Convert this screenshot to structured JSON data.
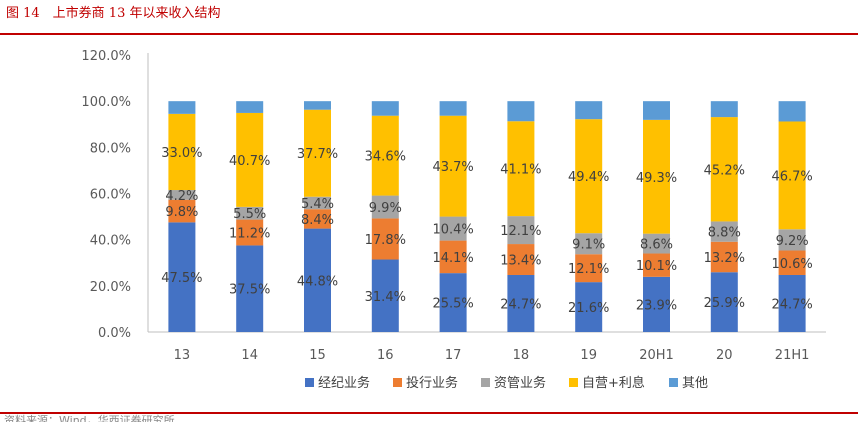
{
  "figure_title": "图 14　上市券商 13 年以来收入结构",
  "source_note": "资料来源：Wind，华西证券研究所",
  "chart_data": {
    "type": "bar",
    "stacked": true,
    "categories": [
      "13",
      "14",
      "15",
      "16",
      "17",
      "18",
      "19",
      "20H1",
      "20",
      "21H1"
    ],
    "ylim": [
      0,
      120
    ],
    "yticks": [
      "0.0%",
      "20.0%",
      "40.0%",
      "60.0%",
      "80.0%",
      "100.0%",
      "120.0%"
    ],
    "legend_position": "bottom",
    "series": [
      {
        "name": "经纪业务",
        "color": "#4472c4",
        "values": [
          47.5,
          37.5,
          44.8,
          31.4,
          25.5,
          24.7,
          21.6,
          23.9,
          25.9,
          24.7
        ],
        "labels": [
          "47.5%",
          "37.5%",
          "44.8%",
          "31.4%",
          "25.5%",
          "24.7%",
          "21.6%",
          "23.9%",
          "25.9%",
          "24.7%"
        ]
      },
      {
        "name": "投行业务",
        "color": "#ed7d31",
        "values": [
          9.8,
          11.2,
          8.4,
          17.8,
          14.1,
          13.4,
          12.1,
          10.1,
          13.2,
          10.6
        ],
        "labels": [
          "9.8%",
          "11.2%",
          "8.4%",
          "17.8%",
          "14.1%",
          "13.4%",
          "12.1%",
          "10.1%",
          "13.2%",
          "10.6%"
        ]
      },
      {
        "name": "资管业务",
        "color": "#a5a5a5",
        "values": [
          4.2,
          5.5,
          5.4,
          9.9,
          10.4,
          12.1,
          9.1,
          8.6,
          8.8,
          9.2
        ],
        "labels": [
          "4.2%",
          "5.5%",
          "5.4%",
          "9.9%",
          "10.4%",
          "12.1%",
          "9.1%",
          "8.6%",
          "8.8%",
          "9.2%"
        ]
      },
      {
        "name": "自营+利息",
        "color": "#ffc000",
        "values": [
          33.0,
          40.7,
          37.7,
          34.6,
          43.7,
          41.1,
          49.4,
          49.3,
          45.2,
          46.7
        ],
        "labels": [
          "33.0%",
          "40.7%",
          "37.7%",
          "34.6%",
          "43.7%",
          "41.1%",
          "49.4%",
          "49.3%",
          "45.2%",
          "46.7%"
        ]
      },
      {
        "name": "其他",
        "color": "#5b9bd5",
        "values": [
          5.5,
          5.1,
          3.7,
          6.3,
          6.3,
          8.7,
          7.8,
          8.1,
          6.9,
          8.8
        ],
        "labels": null
      }
    ]
  }
}
